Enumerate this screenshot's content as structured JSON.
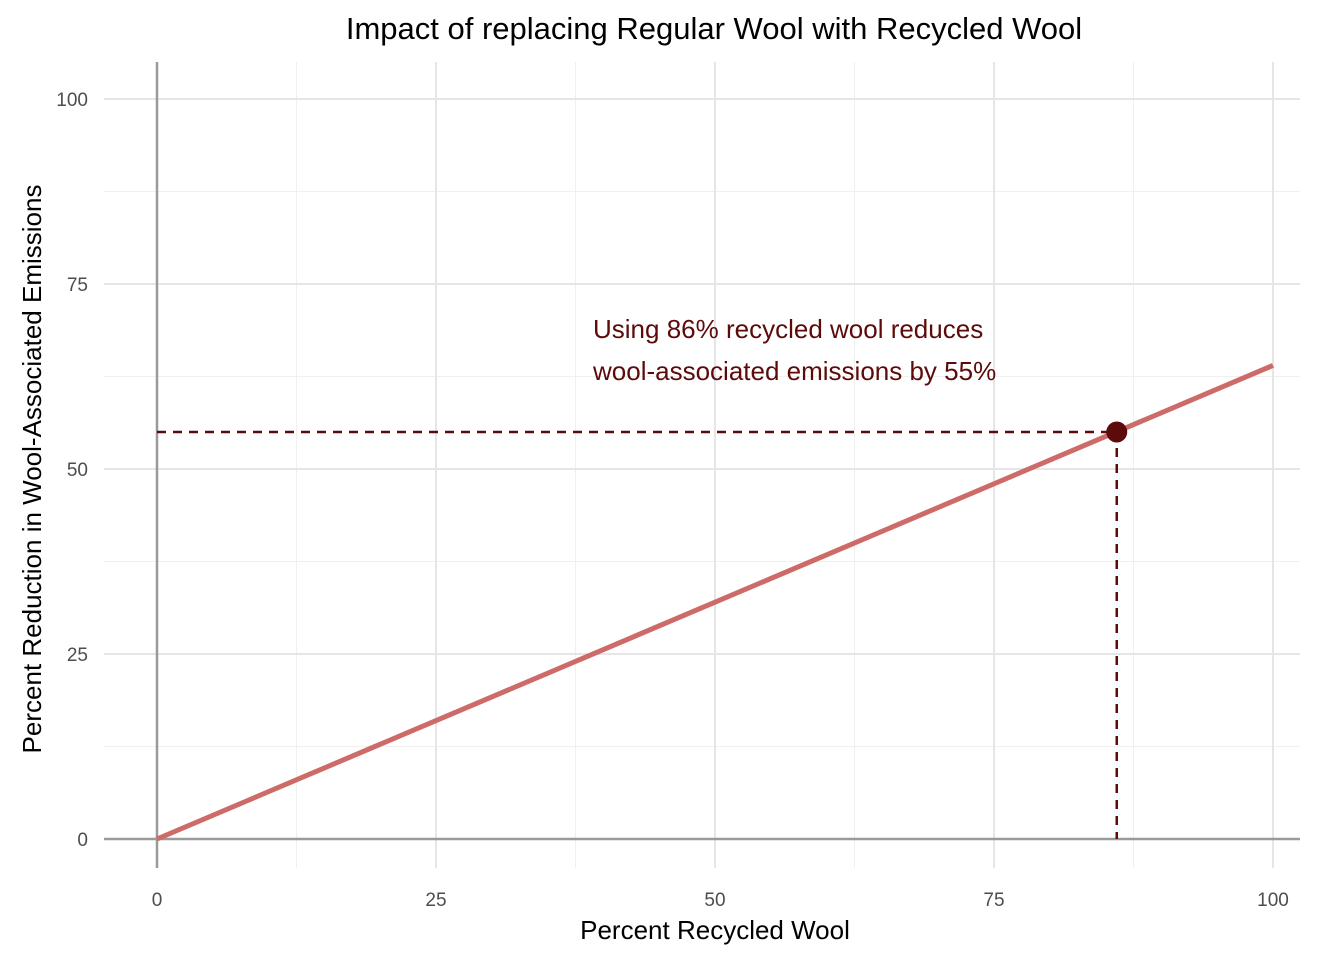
{
  "chart_data": {
    "type": "line",
    "title": "Impact of replacing Regular Wool with Recycled Wool",
    "xlabel": "Percent Recycled Wool",
    "ylabel": "Percent Reduction in Wool-Associated Emissions",
    "xlim": [
      0,
      100
    ],
    "ylim": [
      0,
      100
    ],
    "x_ticks": [
      "0",
      "25",
      "50",
      "75",
      "100"
    ],
    "y_ticks": [
      "0",
      "25",
      "50",
      "75",
      "100"
    ],
    "grid": true,
    "series": [
      {
        "x": [
          0,
          100
        ],
        "y": [
          0,
          64
        ],
        "color": "#cd6b68"
      }
    ],
    "highlight_point": {
      "x": 86,
      "y": 55,
      "color": "#5c0a0a"
    },
    "annotation": {
      "lines": [
        "Using 86% recycled wool reduces",
        "wool-associated emissions by 55%"
      ],
      "color": "#5c0a0a"
    }
  }
}
